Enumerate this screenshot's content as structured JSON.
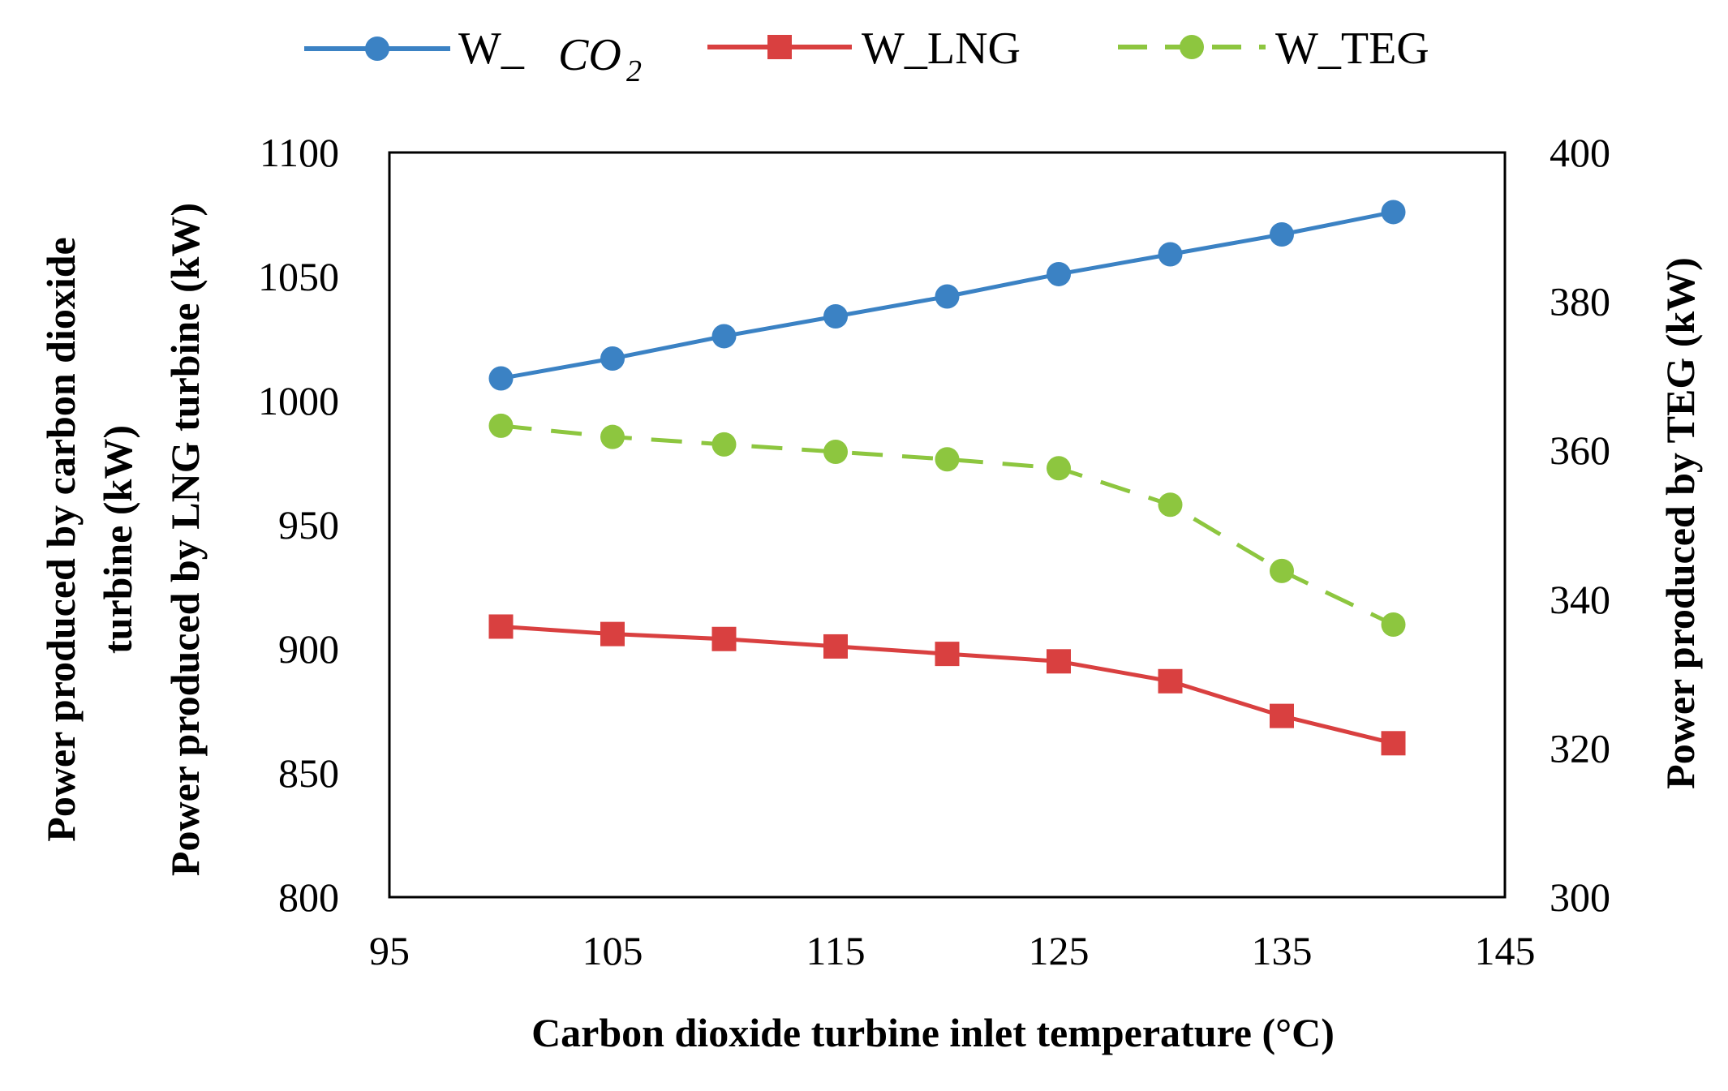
{
  "chart_data": {
    "type": "line",
    "title": "",
    "xlabel": "Carbon dioxide turbine inlet temperature (°C)",
    "ylabel_left": [
      "Power produced by carbon dioxide",
      "turbine (kW)",
      "Power produced by LNG turbine (kW)"
    ],
    "ylabel_right": "Power produced by TEG (kW)",
    "x_ticks": [
      "95",
      "105",
      "115",
      "125",
      "135",
      "145"
    ],
    "y_left_ticks": [
      "800",
      "850",
      "900",
      "950",
      "1000",
      "1050",
      "1100"
    ],
    "y_right_ticks": [
      "300",
      "320",
      "340",
      "360",
      "380",
      "400"
    ],
    "xlim": [
      95,
      145
    ],
    "ylim_left": [
      800,
      1100
    ],
    "ylim_right": [
      300,
      400
    ],
    "x": [
      100,
      105,
      110,
      115,
      120,
      125,
      130,
      135,
      140
    ],
    "series": [
      {
        "key": "co2",
        "legend_main": "W_",
        "legend_math": "CO",
        "legend_sub": "2",
        "axis": "left",
        "marker": "circle",
        "dashed": false,
        "color": "#3b82c4",
        "values": [
          1009,
          1017,
          1026,
          1034,
          1042,
          1051,
          1059,
          1067,
          1076
        ]
      },
      {
        "key": "lng",
        "legend_main": "W_LNG",
        "axis": "left",
        "marker": "square",
        "dashed": false,
        "color": "#d94040",
        "values": [
          909,
          906,
          904,
          901,
          898,
          895,
          887,
          873,
          862
        ]
      },
      {
        "key": "teg",
        "legend_main": "W_TEG",
        "axis": "right",
        "marker": "circle",
        "dashed": true,
        "color": "#8dc63f",
        "values": [
          363.3,
          361.8,
          360.8,
          359.8,
          358.8,
          357.6,
          352.7,
          343.8,
          336.6
        ]
      }
    ],
    "legend_position": "top",
    "grid": false
  }
}
